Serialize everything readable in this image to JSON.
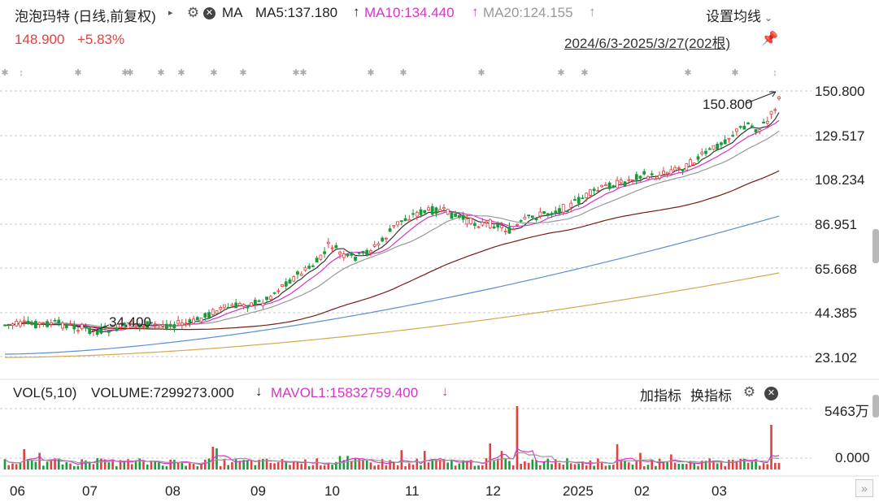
{
  "header": {
    "title": "泡泡玛特 (日线,前复权)",
    "ma_label": "MA",
    "ma5": "MA5:137.180",
    "ma10": "MA10:134.440",
    "ma20": "MA20:124.155",
    "arrow_up": "↑",
    "settings": "设置均线",
    "price": "148.900",
    "change": "+5.83%",
    "range": "2024/6/3-2025/3/27(202根)"
  },
  "colors": {
    "up": "#e04040",
    "down": "#1a9a3a",
    "ma5": "#333333",
    "ma10": "#d535c8",
    "ma20": "#999999",
    "ma60": "#7a1c12",
    "ma120": "#5b8fd0",
    "ma250": "#d4a850"
  },
  "price_axis": [
    "150.800",
    "129.517",
    "108.234",
    "86.951",
    "65.668",
    "44.385",
    "23.102"
  ],
  "annotations": {
    "high": "150.800",
    "low": "34.400"
  },
  "volume": {
    "label": "VOL(5,10)",
    "volume": "VOLUME:7299273.000",
    "volume_arrow": "↓",
    "mavol1": "MAVOL1:15832759.400",
    "mavol1_arrow": "↓",
    "add_indicator": "加指标",
    "swap_indicator": "换指标",
    "axis_top": "5463万",
    "axis_bottom": "0.000"
  },
  "time_axis": [
    "06",
    "07",
    "08",
    "09",
    "10",
    "11",
    "12",
    "2025",
    "02",
    "03"
  ]
}
